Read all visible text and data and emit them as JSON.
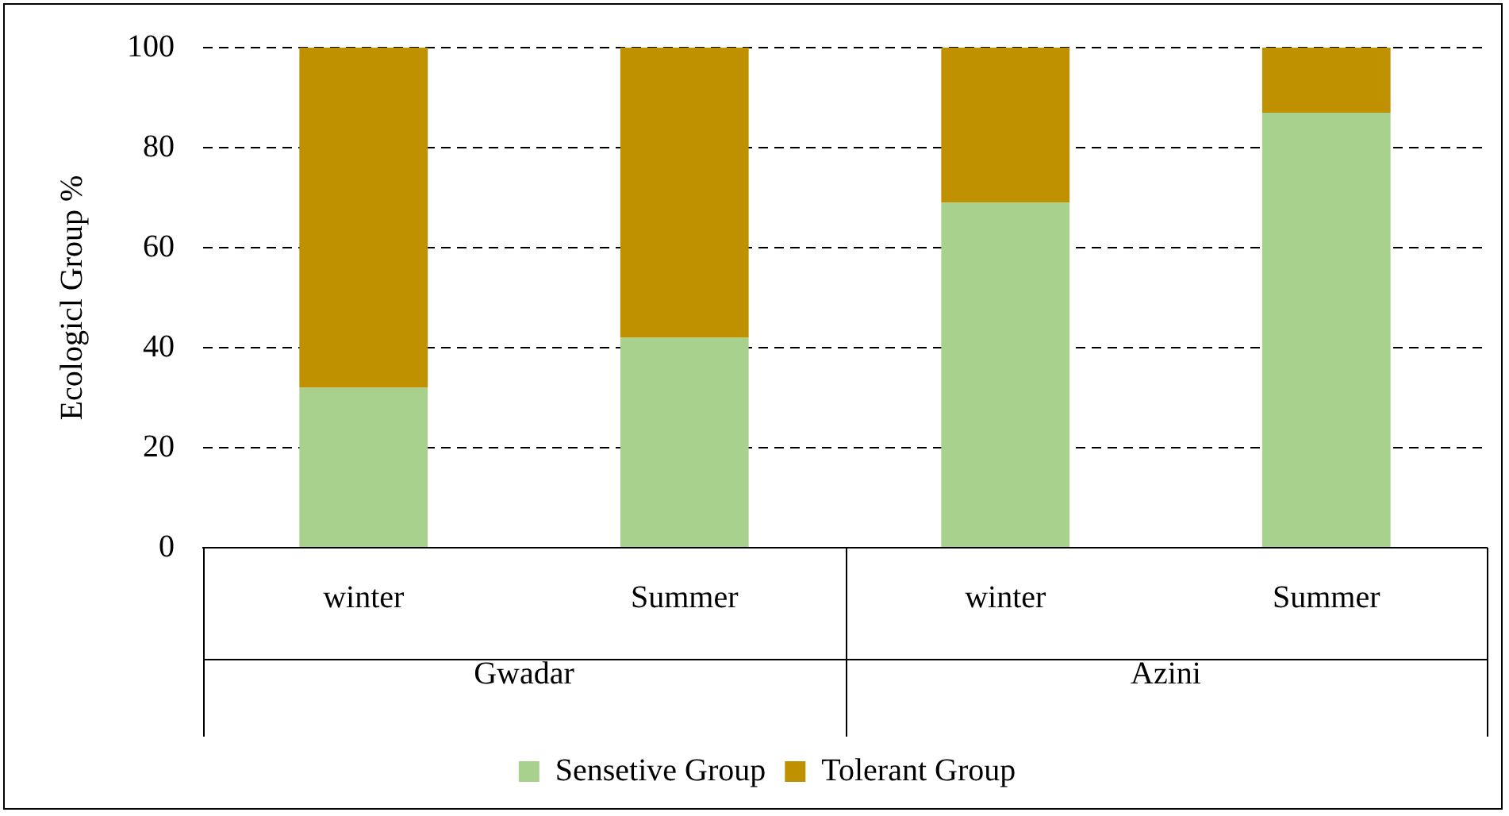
{
  "chart_data": {
    "type": "bar",
    "stacked": true,
    "ylabel": "Ecologicl Group %",
    "categories": [
      "winter",
      "Summer",
      "winter",
      "Summer"
    ],
    "series": [
      {
        "name": "Sensetive Group",
        "color": "#a9d18e",
        "values": [
          32,
          42,
          69,
          87
        ]
      },
      {
        "name": "Tolerant Group",
        "color": "#bf9000",
        "values": [
          68,
          58,
          31,
          13
        ]
      }
    ],
    "ylim": [
      0,
      100
    ],
    "yticks": [
      0,
      20,
      40,
      60,
      80,
      100
    ],
    "grid": "y",
    "legend": "bottom",
    "annotations": [
      "Gwadar",
      "Azini"
    ]
  }
}
